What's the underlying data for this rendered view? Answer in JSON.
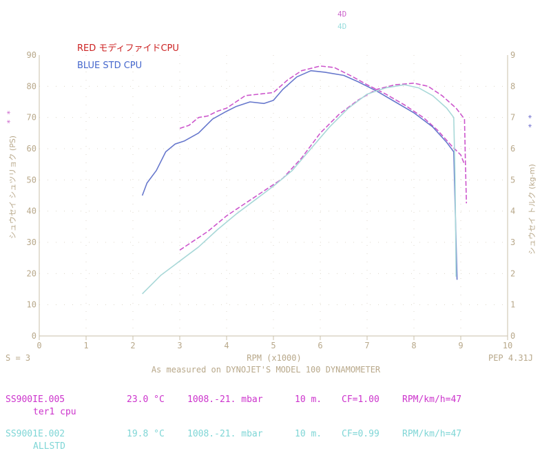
{
  "chart_data": {
    "type": "line",
    "xlabel": "RPM (x1000)",
    "ylabel_left": "シュウセイ シュツリョク (PS)",
    "ylabel_right": "シュウセイ トルク (kg-m)",
    "xlim": [
      0,
      10
    ],
    "ylim_left": [
      0,
      90
    ],
    "ylim_right": [
      0,
      9
    ],
    "x_ticks": [
      "0",
      "1",
      "2",
      "3",
      "4",
      "5",
      "6",
      "7",
      "8",
      "9",
      "10"
    ],
    "y_left_ticks": [
      "0",
      "10",
      "20",
      "30",
      "40",
      "50",
      "60",
      "70",
      "80",
      "90"
    ],
    "y_right_ticks": [
      "0",
      "1",
      "2",
      "3",
      "4",
      "5",
      "6",
      "7",
      "8",
      "9"
    ],
    "grid": "dotted",
    "legend_labels": [
      "RED モディファイドCPU",
      "BLUE STD CPU"
    ],
    "top_labels": [
      "4D",
      "4D"
    ],
    "left_markers": "* *",
    "right_markers": "* *",
    "series": [
      {
        "name": "RED モディファイドCPU",
        "kind": "torque",
        "color": "#cc55cc",
        "dash": true,
        "points": [
          [
            3.0,
            6.65
          ],
          [
            3.2,
            6.75
          ],
          [
            3.4,
            7.0
          ],
          [
            3.6,
            7.05
          ],
          [
            3.8,
            7.2
          ],
          [
            4.0,
            7.3
          ],
          [
            4.2,
            7.5
          ],
          [
            4.4,
            7.7
          ],
          [
            4.7,
            7.75
          ],
          [
            5.0,
            7.8
          ],
          [
            5.3,
            8.2
          ],
          [
            5.6,
            8.5
          ],
          [
            6.0,
            8.65
          ],
          [
            6.3,
            8.6
          ],
          [
            6.7,
            8.3
          ],
          [
            7.0,
            8.05
          ],
          [
            7.4,
            7.75
          ],
          [
            7.8,
            7.4
          ],
          [
            8.2,
            7.0
          ],
          [
            8.5,
            6.6
          ],
          [
            8.8,
            6.1
          ],
          [
            9.0,
            5.8
          ],
          [
            9.08,
            5.5
          ]
        ]
      },
      {
        "name": "BLUE STD CPU",
        "kind": "torque",
        "color": "#6677cc",
        "dash": false,
        "points": [
          [
            2.2,
            4.5
          ],
          [
            2.3,
            4.9
          ],
          [
            2.5,
            5.3
          ],
          [
            2.7,
            5.9
          ],
          [
            2.9,
            6.15
          ],
          [
            3.1,
            6.25
          ],
          [
            3.4,
            6.5
          ],
          [
            3.7,
            6.95
          ],
          [
            4.0,
            7.2
          ],
          [
            4.2,
            7.35
          ],
          [
            4.5,
            7.5
          ],
          [
            4.8,
            7.45
          ],
          [
            5.0,
            7.55
          ],
          [
            5.2,
            7.9
          ],
          [
            5.5,
            8.3
          ],
          [
            5.8,
            8.5
          ],
          [
            6.1,
            8.45
          ],
          [
            6.5,
            8.35
          ],
          [
            6.8,
            8.15
          ],
          [
            7.2,
            7.85
          ],
          [
            7.6,
            7.5
          ],
          [
            8.0,
            7.15
          ],
          [
            8.4,
            6.7
          ],
          [
            8.7,
            6.2
          ],
          [
            8.85,
            5.9
          ],
          [
            8.9,
            3.0
          ],
          [
            8.92,
            1.8
          ]
        ]
      },
      {
        "name": "RED モディファイドCPU",
        "kind": "power",
        "color": "#cc55cc",
        "dash": true,
        "points": [
          [
            3.0,
            27.5
          ],
          [
            3.3,
            30.5
          ],
          [
            3.6,
            33.5
          ],
          [
            4.0,
            38.5
          ],
          [
            4.4,
            42.5
          ],
          [
            4.8,
            46.5
          ],
          [
            5.2,
            50.5
          ],
          [
            5.6,
            57.0
          ],
          [
            6.0,
            65.0
          ],
          [
            6.4,
            71.0
          ],
          [
            6.8,
            75.5
          ],
          [
            7.2,
            79.0
          ],
          [
            7.6,
            80.5
          ],
          [
            8.0,
            81.0
          ],
          [
            8.3,
            80.0
          ],
          [
            8.6,
            77.0
          ],
          [
            8.9,
            73.0
          ],
          [
            9.08,
            69.5
          ],
          [
            9.1,
            55.0
          ],
          [
            9.12,
            42.5
          ]
        ]
      },
      {
        "name": "BLUE STD CPU",
        "kind": "power",
        "color": "#a8d8d8",
        "dash": false,
        "points": [
          [
            2.2,
            13.5
          ],
          [
            2.6,
            19.5
          ],
          [
            3.0,
            24.0
          ],
          [
            3.4,
            28.5
          ],
          [
            3.8,
            34.0
          ],
          [
            4.2,
            39.0
          ],
          [
            4.6,
            43.5
          ],
          [
            5.0,
            48.0
          ],
          [
            5.4,
            53.0
          ],
          [
            5.8,
            60.0
          ],
          [
            6.2,
            67.0
          ],
          [
            6.6,
            73.0
          ],
          [
            7.0,
            77.5
          ],
          [
            7.4,
            79.5
          ],
          [
            7.8,
            80.5
          ],
          [
            8.1,
            79.5
          ],
          [
            8.4,
            77.0
          ],
          [
            8.7,
            73.0
          ],
          [
            8.85,
            70.0
          ],
          [
            8.88,
            50.0
          ],
          [
            8.9,
            19.0
          ]
        ]
      }
    ]
  },
  "bottom": {
    "left": "S = 3",
    "right": "PEP 4.31J",
    "measured": "As measured on DYNOJET'S MODEL 100 DYNAMOMETER"
  },
  "runs": [
    {
      "file": "SS900IE.005",
      "temp": "23.0 °C",
      "pressure": "1008.-21. mbar",
      "dist": "10 m.",
      "cf": "CF=1.00",
      "ratio": "RPM/km/h=47",
      "label": "ter1 cpu"
    },
    {
      "file": "SS9001E.002",
      "temp": "19.8 °C",
      "pressure": "1008.-21. mbar",
      "dist": "10 m.",
      "cf": "CF=0.99",
      "ratio": "RPM/km/h=47",
      "label": "ALLSTD"
    }
  ]
}
